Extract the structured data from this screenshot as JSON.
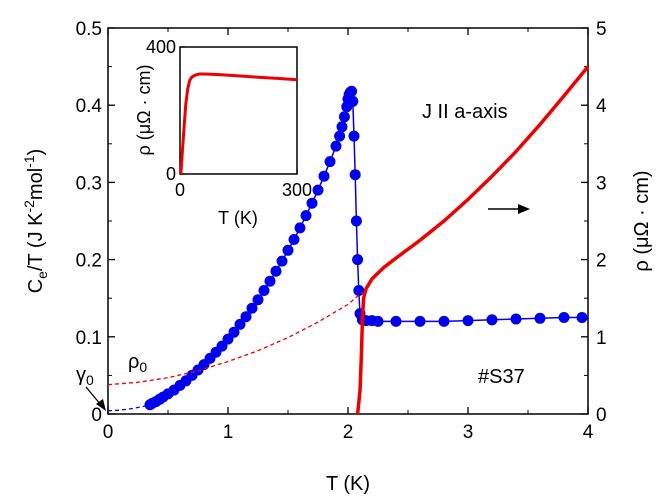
{
  "chart_data": {
    "type": "line",
    "xlabel": "T (K)",
    "ylabel_left": "Ce/T (J K-2mol-1)",
    "ylabel_right": "ρ (μΩ · cm)",
    "xlim": [
      0,
      4
    ],
    "ylim_left": [
      0,
      0.5
    ],
    "ylim_right": [
      0,
      5
    ],
    "x_ticks": [
      "0",
      "1",
      "2",
      "3",
      "4"
    ],
    "y_left_ticks": [
      "0",
      "0.1",
      "0.2",
      "0.3",
      "0.4",
      "0.5"
    ],
    "y_right_ticks": [
      "0",
      "1",
      "2",
      "3",
      "4",
      "5"
    ],
    "annotations": {
      "direction": "J II a-axis",
      "sample": "#S37",
      "gamma0": "γ0",
      "rho0": "ρ0"
    },
    "series": [
      {
        "kind": "specific_heat",
        "axis": "left",
        "color": "#0000ee",
        "x": [
          0.35,
          0.37,
          0.4,
          0.43,
          0.46,
          0.5,
          0.55,
          0.6,
          0.65,
          0.7,
          0.75,
          0.8,
          0.85,
          0.9,
          0.95,
          1.0,
          1.05,
          1.1,
          1.15,
          1.2,
          1.25,
          1.3,
          1.35,
          1.4,
          1.45,
          1.5,
          1.55,
          1.6,
          1.65,
          1.7,
          1.75,
          1.8,
          1.85,
          1.9,
          1.93,
          1.95,
          1.97,
          1.99,
          2.0,
          2.01,
          2.02,
          2.03,
          2.04,
          2.05,
          2.06,
          2.07,
          2.08,
          2.09,
          2.1,
          2.12,
          2.15,
          2.2,
          2.25,
          2.4,
          2.6,
          2.8,
          3.0,
          3.2,
          3.4,
          3.6,
          3.8,
          3.95
        ],
        "y": [
          0.012,
          0.014,
          0.016,
          0.019,
          0.022,
          0.026,
          0.031,
          0.037,
          0.043,
          0.05,
          0.057,
          0.064,
          0.072,
          0.08,
          0.088,
          0.097,
          0.106,
          0.116,
          0.126,
          0.137,
          0.148,
          0.16,
          0.172,
          0.185,
          0.198,
          0.212,
          0.226,
          0.241,
          0.257,
          0.273,
          0.29,
          0.308,
          0.327,
          0.347,
          0.36,
          0.372,
          0.385,
          0.398,
          0.408,
          0.414,
          0.417,
          0.418,
          0.405,
          0.36,
          0.31,
          0.25,
          0.2,
          0.16,
          0.13,
          0.122,
          0.121,
          0.121,
          0.12,
          0.12,
          0.12,
          0.12,
          0.121,
          0.122,
          0.123,
          0.124,
          0.125,
          0.125
        ]
      },
      {
        "kind": "resistivity",
        "axis": "right",
        "color": "#ee0000",
        "x": [
          2.08,
          2.1,
          2.11,
          2.12,
          2.13,
          2.15,
          2.2,
          2.3,
          2.4,
          2.6,
          2.8,
          3.0,
          3.2,
          3.4,
          3.6,
          3.8,
          4.0
        ],
        "y": [
          0.0,
          0.3,
          0.7,
          1.2,
          1.5,
          1.62,
          1.75,
          1.9,
          2.02,
          2.25,
          2.5,
          2.78,
          3.08,
          3.4,
          3.75,
          4.12,
          4.5
        ]
      },
      {
        "kind": "gamma_extrapolation",
        "axis": "left",
        "color": "#0000ee",
        "style": "dashed",
        "x": [
          0,
          0.1,
          0.2,
          0.3,
          0.35
        ],
        "y": [
          0.004,
          0.005,
          0.007,
          0.01,
          0.012
        ]
      },
      {
        "kind": "rho_extrapolation",
        "axis": "right",
        "color": "#ee0000",
        "style": "dashed",
        "x": [
          0,
          0.25,
          0.5,
          0.75,
          1.0,
          1.25,
          1.5,
          1.75,
          2.0,
          2.12
        ],
        "y": [
          0.38,
          0.41,
          0.47,
          0.56,
          0.68,
          0.82,
          0.99,
          1.19,
          1.42,
          1.58
        ]
      }
    ],
    "inset": {
      "xlabel": "T (K)",
      "ylabel": "ρ (μΩ · cm)",
      "xlim": [
        0,
        300
      ],
      "ylim": [
        0,
        400
      ],
      "x_ticks": [
        "0",
        "300"
      ],
      "y_ticks": [
        "0",
        "400"
      ],
      "color": "#ee0000",
      "x": [
        2.1,
        5,
        10,
        15,
        20,
        25,
        30,
        40,
        50,
        60,
        80,
        100,
        150,
        200,
        250,
        300
      ],
      "y": [
        0,
        50,
        140,
        220,
        270,
        295,
        305,
        312,
        315,
        315,
        314,
        313,
        309,
        305,
        301,
        297
      ]
    }
  }
}
